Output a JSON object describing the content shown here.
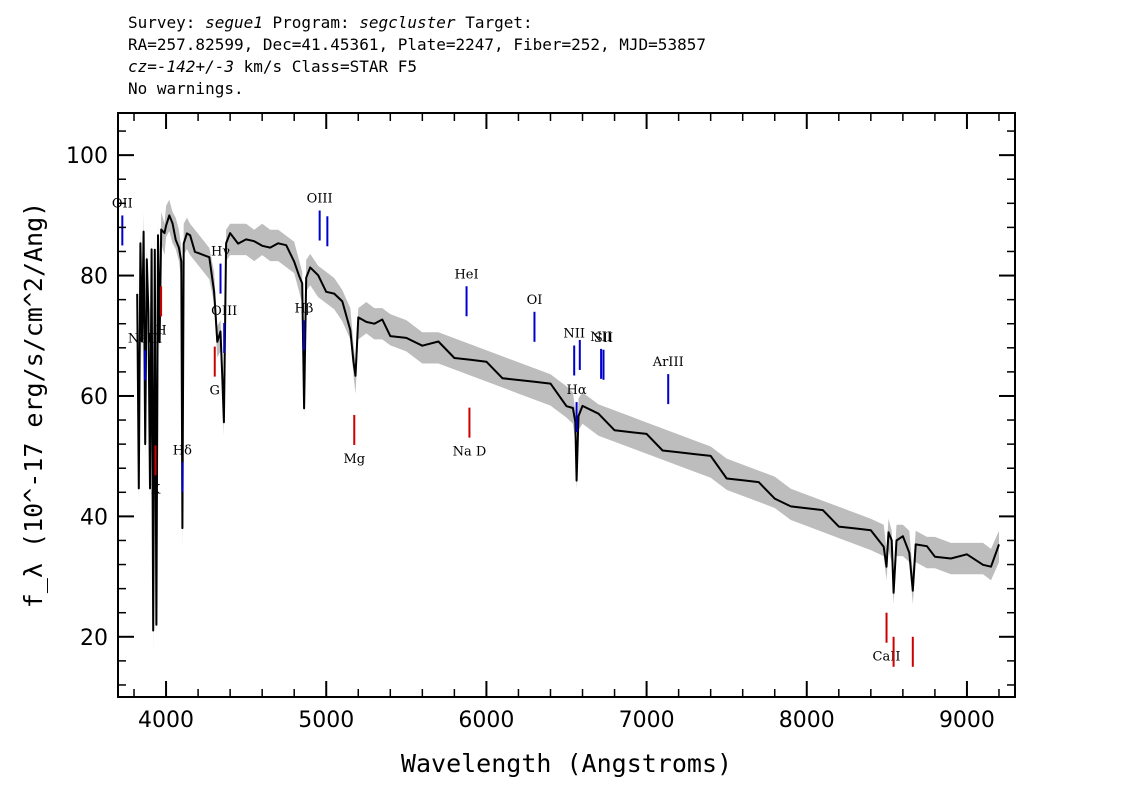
{
  "header": {
    "survey_key": "Survey:",
    "survey_val": "segue1",
    "program_key": "Program:",
    "program_val": "segcluster",
    "target_key": "Target:",
    "line2": "RA=257.82599, Dec=41.45361, Plate=2247, Fiber=252, MJD=53857",
    "cz_key": "cz=",
    "cz_val": "-142+/-3",
    "cz_rest": "km/s Class=STAR F5",
    "line4": "No warnings."
  },
  "colors": {
    "flux": "#000000",
    "error_band": "#bdbdbd",
    "emission_lines": "#0000cc",
    "absorption_lines": "#cc0000",
    "axes": "#000000"
  },
  "chart_data": {
    "type": "line",
    "xlabel": "Wavelength (Angstroms)",
    "ylabel": "f_λ (10^-17 erg/s/cm^2/Ang)",
    "xlim": [
      3700,
      9300
    ],
    "ylim": [
      10,
      107
    ],
    "x_ticks": [
      4000,
      5000,
      6000,
      7000,
      8000,
      9000
    ],
    "y_ticks": [
      20,
      40,
      60,
      80,
      100
    ],
    "x_tick_labels": [
      "4000",
      "5000",
      "6000",
      "7000",
      "8000",
      "9000"
    ],
    "y_tick_labels": [
      "20",
      "40",
      "60",
      "80",
      "100"
    ],
    "grid": false,
    "series": [
      {
        "x": [
          3820,
          3830,
          3840,
          3850,
          3860,
          3870,
          3880,
          3890,
          3900,
          3910,
          3920,
          3930,
          3940,
          3950,
          3960,
          3970,
          3980,
          3990,
          4000,
          4020,
          4040,
          4060,
          4080,
          4095,
          4102,
          4110,
          4130,
          4150,
          4180,
          4210,
          4240,
          4270,
          4300,
          4320,
          4340,
          4350,
          4361,
          4375,
          4400,
          4450,
          4500,
          4550,
          4600,
          4650,
          4700,
          4750,
          4800,
          4830,
          4850,
          4862,
          4875,
          4900,
          4950,
          5000,
          5050,
          5100,
          5150,
          5170,
          5183,
          5200,
          5250,
          5300,
          5350,
          5400,
          5500,
          5600,
          5700,
          5800,
          5900,
          6000,
          6100,
          6200,
          6300,
          6400,
          6500,
          6540,
          6555,
          6563,
          6575,
          6600,
          6700,
          6800,
          6900,
          7000,
          7100,
          7200,
          7300,
          7400,
          7500,
          7600,
          7700,
          7800,
          7900,
          8000,
          8100,
          8200,
          8300,
          8400,
          8480,
          8498,
          8510,
          8530,
          8542,
          8560,
          8600,
          8640,
          8662,
          8680,
          8750,
          8800,
          8900,
          9000,
          9100,
          9150,
          9200
        ],
        "y": [
          78,
          45,
          85,
          68,
          88,
          52,
          82,
          75,
          45,
          84,
          20,
          85,
          22,
          86,
          70,
          88,
          87,
          86,
          89,
          90,
          88,
          87,
          85,
          82,
          37,
          86,
          87,
          86,
          85,
          84,
          83,
          82,
          78,
          69,
          70,
          65,
          56,
          85,
          86,
          86,
          86,
          85,
          86,
          85,
          85,
          84,
          83,
          80,
          78,
          59,
          80,
          81,
          79,
          78,
          77,
          75,
          72,
          66,
          63,
          72,
          73,
          72,
          72,
          71,
          70,
          68,
          68,
          67,
          66,
          65,
          64,
          63,
          62,
          61,
          59,
          58,
          55,
          47,
          57,
          58,
          56,
          55,
          54,
          53,
          52,
          51,
          50,
          49,
          47,
          46,
          45,
          44,
          42,
          41,
          40,
          39,
          38,
          37,
          36,
          32,
          37,
          35,
          28,
          36,
          36,
          35,
          28,
          35,
          34,
          34,
          33,
          33,
          33,
          32,
          35
        ]
      }
    ],
    "line_markers": [
      {
        "label": "OII",
        "wave": 3727,
        "kind": "emission",
        "label_pos": "above"
      },
      {
        "label": "NeIII",
        "wave": 3869,
        "kind": "emission",
        "label_pos": "above"
      },
      {
        "label": "Hδ",
        "wave": 4102,
        "kind": "emission",
        "label_pos": "above"
      },
      {
        "label": "Hγ",
        "wave": 4340,
        "kind": "emission",
        "label_pos": "above"
      },
      {
        "label": "OIII",
        "wave": 4363,
        "kind": "emission",
        "label_pos": "above"
      },
      {
        "label": "Hβ",
        "wave": 4861,
        "kind": "emission",
        "label_pos": "above"
      },
      {
        "label": "OIII",
        "wave": 4959,
        "kind": "emission",
        "label_pos": "above"
      },
      {
        "label": "",
        "wave": 5007,
        "kind": "emission",
        "label_pos": "above"
      },
      {
        "label": "HeI",
        "wave": 5876,
        "kind": "emission",
        "label_pos": "above"
      },
      {
        "label": "OI",
        "wave": 6300,
        "kind": "emission",
        "label_pos": "above"
      },
      {
        "label": "NII",
        "wave": 6548,
        "kind": "emission",
        "label_pos": "above"
      },
      {
        "label": "Hα",
        "wave": 6563,
        "kind": "emission",
        "label_pos": "above"
      },
      {
        "label": "",
        "wave": 6583,
        "kind": "emission",
        "label_pos": "above"
      },
      {
        "label": "NII",
        "wave": 6716,
        "kind": "emission",
        "label_pos": "above"
      },
      {
        "label": "SII",
        "wave": 6731,
        "kind": "emission",
        "label_pos": "above"
      },
      {
        "label": "ArIII",
        "wave": 7135,
        "kind": "emission",
        "label_pos": "above"
      },
      {
        "label": "K",
        "wave": 3934,
        "kind": "absorption",
        "label_pos": "below"
      },
      {
        "label": "H",
        "wave": 3969,
        "kind": "absorption",
        "label_pos": "below"
      },
      {
        "label": "G",
        "wave": 4304,
        "kind": "absorption",
        "label_pos": "below"
      },
      {
        "label": "Mg",
        "wave": 5175,
        "kind": "absorption",
        "label_pos": "below"
      },
      {
        "label": "Na D",
        "wave": 5894,
        "kind": "absorption",
        "label_pos": "below"
      },
      {
        "label": "CaII",
        "wave": 8498,
        "kind": "absorption",
        "label_pos": "below"
      },
      {
        "label": "",
        "wave": 8542,
        "kind": "absorption",
        "label_pos": "below"
      },
      {
        "label": "",
        "wave": 8662,
        "kind": "absorption",
        "label_pos": "below"
      }
    ]
  }
}
